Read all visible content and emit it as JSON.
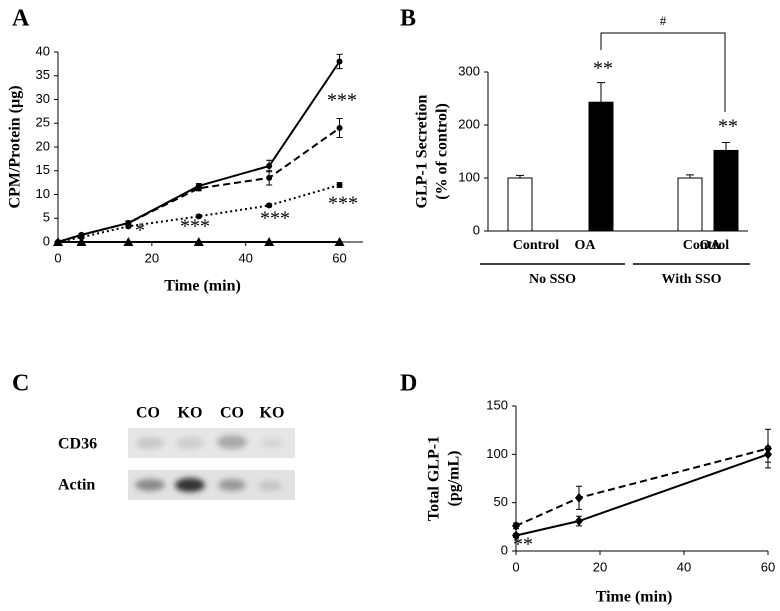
{
  "chart_data": [
    {
      "panel": "A",
      "type": "line",
      "xlabel": "Time (min)",
      "ylabel": [
        "CPM/Protein (µg)"
      ],
      "x": [
        0,
        5,
        15,
        30,
        45,
        60
      ],
      "xlim": [
        0,
        65
      ],
      "xticks": [
        0,
        20,
        40,
        60
      ],
      "ylim": [
        0,
        40
      ],
      "yticks": [
        0,
        5,
        10,
        15,
        20,
        25,
        30,
        35,
        40
      ],
      "series": [
        {
          "color": "#000000",
          "dash": "solid",
          "marker": "circle",
          "values": [
            0,
            1.5,
            4,
            11.8,
            16,
            38
          ],
          "errors": [
            0,
            0.3,
            0.4,
            0.5,
            1.2,
            1.5
          ]
        },
        {
          "color": "#000000",
          "dash": "dashed",
          "marker": "circle",
          "values": [
            0,
            1.5,
            4,
            11.3,
            13.5,
            24
          ],
          "errors": [
            0,
            0.3,
            0.4,
            0.5,
            1.5,
            2
          ]
        },
        {
          "color": "#000000",
          "dash": "dotted",
          "marker": "circle",
          "values": [
            0,
            1,
            3.3,
            5.4,
            7.7,
            12
          ],
          "errors": [
            0,
            0.2,
            0.3,
            0.3,
            0.3,
            0.5
          ]
        },
        {
          "color": "#000000",
          "dash": "solid",
          "marker": "triangle",
          "values": [
            0,
            0,
            0,
            0,
            0,
            0
          ],
          "errors": [
            0,
            0,
            0,
            0,
            0,
            0
          ]
        }
      ],
      "annotations": [
        "***",
        "*",
        "***",
        "***",
        "***"
      ]
    },
    {
      "panel": "B",
      "type": "bar",
      "ylabel": [
        "GLP-1 Secretion",
        "(% of control)"
      ],
      "categories": [
        "Control",
        "OA",
        "Control",
        "OA"
      ],
      "values": [
        100,
        243,
        100,
        152
      ],
      "errors": [
        5,
        37,
        6,
        15
      ],
      "colors": [
        "#ffffff",
        "#000000",
        "#ffffff",
        "#000000"
      ],
      "groups": [
        "No SSO",
        "With SSO"
      ],
      "ylim": [
        0,
        300
      ],
      "yticks": [
        0,
        100,
        200,
        300
      ],
      "annotations": [
        "**",
        "**",
        "#"
      ]
    },
    {
      "panel": "D",
      "type": "line",
      "xlabel": "Time (min)",
      "ylabel": [
        "Total GLP-1",
        "(pg/mL)"
      ],
      "x": [
        0,
        15,
        60
      ],
      "xlim": [
        0,
        60
      ],
      "xticks": [
        0,
        20,
        40,
        60
      ],
      "ylim": [
        0,
        150
      ],
      "yticks": [
        0,
        50,
        100,
        150
      ],
      "series": [
        {
          "color": "#000000",
          "dash": "solid",
          "marker": "diamond",
          "values": [
            16,
            31,
            100
          ],
          "errors": [
            2,
            5,
            8
          ]
        },
        {
          "color": "#000000",
          "dash": "dashed",
          "marker": "diamond",
          "values": [
            26,
            55,
            106
          ],
          "errors": [
            3,
            12,
            20
          ]
        }
      ],
      "annotations": [
        "**"
      ]
    }
  ],
  "blot": {
    "panel": "C",
    "columns": [
      "CO",
      "KO",
      "CO",
      "KO"
    ],
    "rows": [
      "CD36",
      "Actin"
    ]
  }
}
